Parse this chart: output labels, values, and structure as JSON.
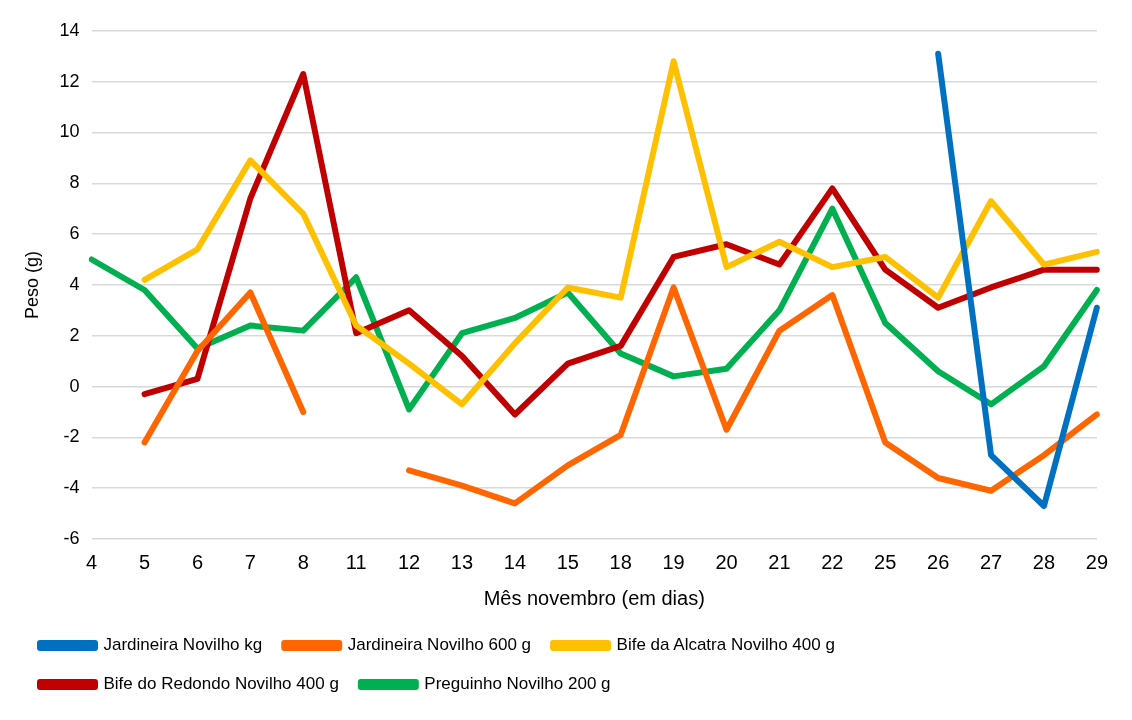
{
  "chart_data": {
    "type": "line",
    "xlabel": "Mês novembro (em dias)",
    "ylabel": "Peso (g)",
    "categories": [
      "4",
      "5",
      "6",
      "7",
      "8",
      "11",
      "12",
      "13",
      "14",
      "15",
      "18",
      "19",
      "20",
      "21",
      "22",
      "25",
      "26",
      "27",
      "28",
      "29"
    ],
    "series": [
      {
        "name": "Jardineira Novilho kg",
        "color": "#0070c0",
        "values": [
          null,
          null,
          null,
          null,
          null,
          null,
          null,
          null,
          null,
          null,
          null,
          null,
          null,
          null,
          null,
          null,
          13.1,
          -2.7,
          -4.7,
          3.1
        ]
      },
      {
        "name": "Jardineira Novilho 600 g",
        "color": "#ff6600",
        "values": [
          null,
          -2.2,
          1.4,
          3.7,
          -1.0,
          null,
          -3.3,
          -3.9,
          -4.6,
          -3.1,
          -1.9,
          3.9,
          -1.7,
          2.2,
          3.6,
          -2.2,
          -3.6,
          -4.1,
          -2.7,
          -1.1
        ]
      },
      {
        "name": "Bife da Alcatra Novilho 400 g",
        "color": "#ffc000",
        "values": [
          null,
          4.2,
          5.4,
          8.9,
          6.8,
          2.4,
          0.9,
          -0.7,
          1.7,
          3.9,
          3.5,
          12.8,
          4.7,
          5.7,
          4.7,
          5.1,
          3.5,
          7.3,
          4.8,
          5.3
        ]
      },
      {
        "name": "Bife do Redondo Novilho 400 g",
        "color": "#c00000",
        "values": [
          null,
          -0.3,
          0.3,
          7.4,
          12.3,
          2.1,
          3.0,
          1.2,
          -1.1,
          0.9,
          1.6,
          5.1,
          5.6,
          4.8,
          7.8,
          4.6,
          3.1,
          3.9,
          4.6,
          4.6
        ]
      },
      {
        "name": "Preguinho Novilho 200 g",
        "color": "#00b050",
        "values": [
          5.0,
          3.8,
          1.5,
          2.4,
          2.2,
          4.3,
          -0.9,
          2.1,
          2.7,
          3.7,
          1.3,
          0.4,
          0.7,
          3.0,
          7.0,
          2.5,
          0.6,
          -0.7,
          0.8,
          3.8
        ]
      }
    ],
    "ylim": [
      -6,
      14
    ],
    "yticks": [
      -6,
      -4,
      -2,
      0,
      2,
      4,
      6,
      8,
      10,
      12,
      14
    ],
    "grid": "y",
    "legend": "bottom",
    "marker": "none",
    "line_style": "solid"
  }
}
